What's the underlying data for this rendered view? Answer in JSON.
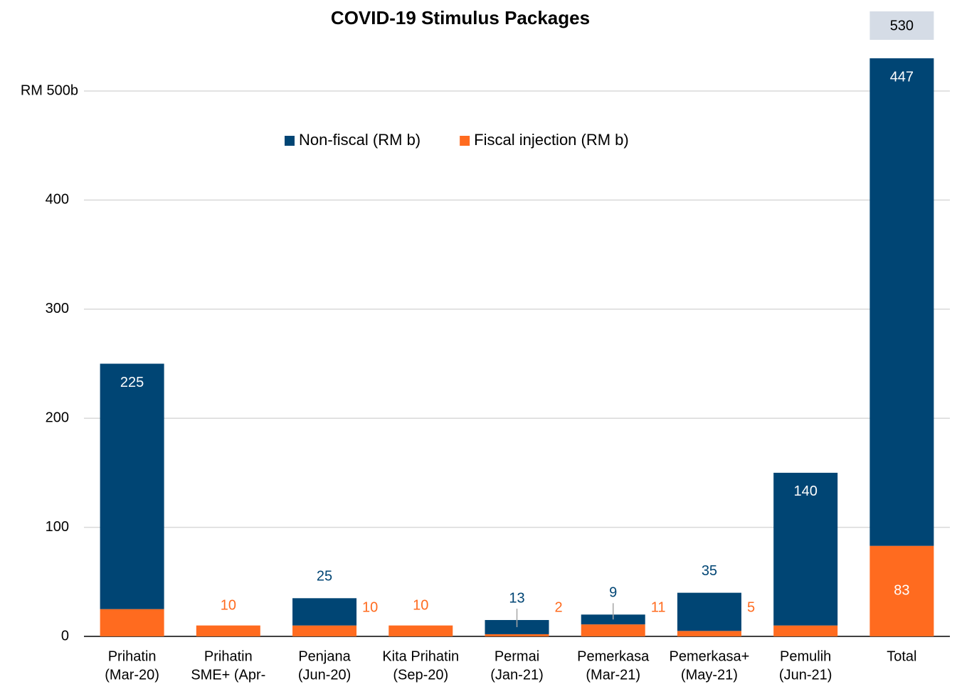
{
  "chart_data": {
    "type": "stacked_bar",
    "title": "COVID-19 Stimulus Packages",
    "categories": [
      [
        "Prihatin",
        "(Mar-20)"
      ],
      [
        "Prihatin",
        "SME+ (Apr-"
      ],
      [
        "Penjana",
        "(Jun-20)"
      ],
      [
        "Kita Prihatin",
        "(Sep-20)"
      ],
      [
        "Permai",
        "(Jan-21)"
      ],
      [
        "Pemerkasa",
        "(Mar-21)"
      ],
      [
        "Pemerkasa+",
        "(May-21)"
      ],
      [
        "Pemulih",
        "(Jun-21)"
      ],
      [
        "Total"
      ]
    ],
    "series": [
      {
        "name": "Fiscal injection (RM b)",
        "color": "#ff6b1f",
        "values": [
          25,
          10,
          10,
          10,
          2,
          11,
          5,
          10,
          83
        ]
      },
      {
        "name": "Non-fiscal (RM b)",
        "color": "#004574",
        "values": [
          225,
          null,
          25,
          null,
          13,
          9,
          35,
          140,
          447
        ]
      }
    ],
    "legend_order": [
      1,
      0
    ],
    "total": 530,
    "ylim": [
      0,
      530
    ],
    "yticks": [
      0,
      100,
      200,
      300,
      400,
      {
        "value": 500,
        "label": "RM 500b"
      }
    ],
    "grid": true
  }
}
